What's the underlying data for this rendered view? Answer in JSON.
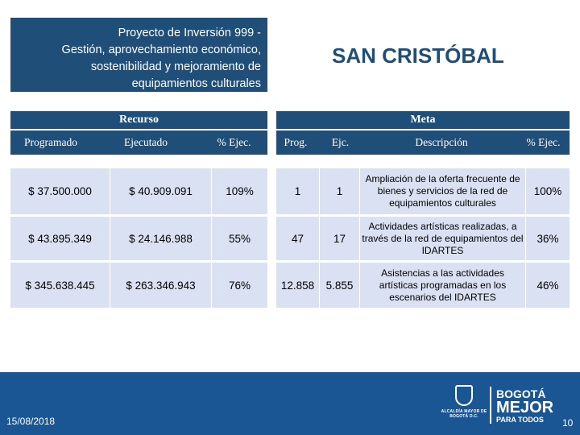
{
  "project": {
    "lines": [
      "Proyecto de Inversión  999 -",
      "Gestión, aprovechamiento económico,",
      "sostenibilidad y mejoramiento de",
      "equipamientos culturales"
    ]
  },
  "locality": "SAN CRISTÓBAL",
  "recurso": {
    "header": "Recurso",
    "columns": [
      "Programado",
      "Ejecutado",
      "% Ejec."
    ],
    "rows": [
      [
        "$ 37.500.000",
        "$ 40.909.091",
        "109%"
      ],
      [
        "$ 43.895.349",
        "$ 24.146.988",
        "55%"
      ],
      [
        "$ 345.638.445",
        "$ 263.346.943",
        "76%"
      ]
    ]
  },
  "meta": {
    "header": "Meta",
    "columns": [
      "Prog.",
      "Ejc.",
      "Descripción",
      "% Ejec."
    ],
    "rows": [
      [
        "1",
        "1",
        "Ampliación de la oferta frecuente de bienes y servicios de la red de equipamientos culturales",
        "100%"
      ],
      [
        "47",
        "17",
        "Actividades artísticas realizadas, a través de la red de equipamientos del IDARTES",
        "36%"
      ],
      [
        "12.858",
        "5.855",
        "Asistencias a las actividades artísticas programadas en los escenarios del IDARTES",
        "46%"
      ]
    ]
  },
  "footer": {
    "date": "15/08/2018",
    "page": "10",
    "logo_left_text": "ALCALDÍA MAYOR DE BOGOTÁ D.C.",
    "logo_right": [
      "BOGOTÁ",
      "MEJOR",
      "PARA TODOS"
    ],
    "logo_icons": [
      "shield-icon"
    ]
  },
  "colors": {
    "header_blue": "#1f4e79",
    "cell_blue": "#d9e1f2",
    "footer_blue": "#1a5693"
  }
}
